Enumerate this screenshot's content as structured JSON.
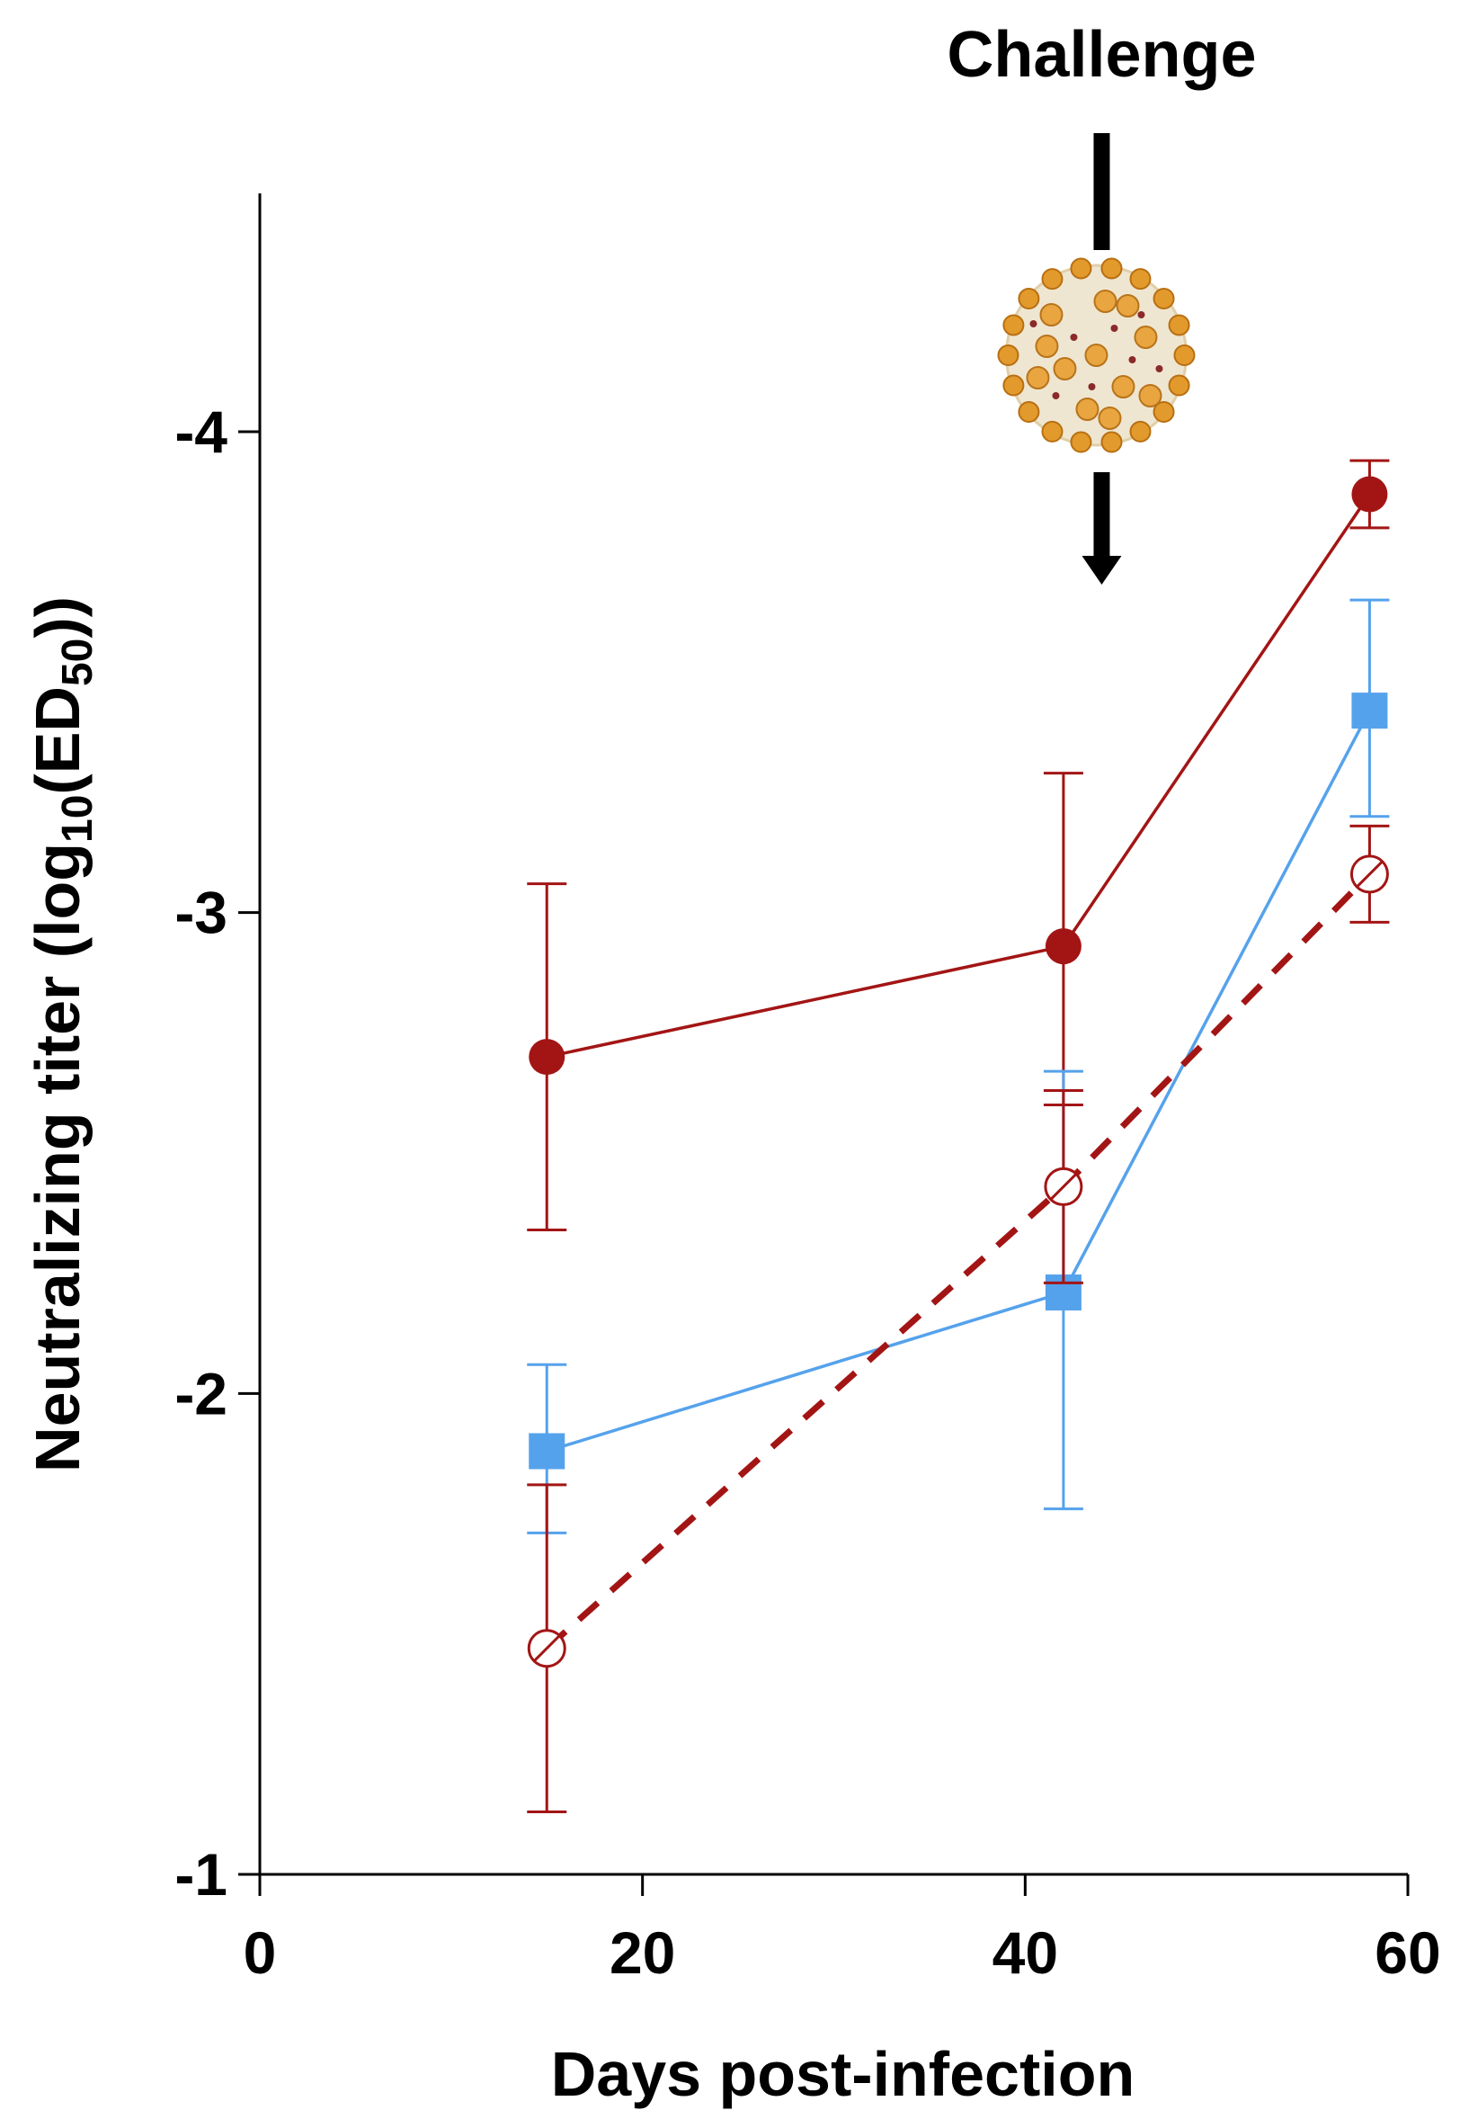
{
  "chart_data": {
    "type": "line",
    "xlabel": "Days post-infection",
    "ylabel_main": "Neutralizing titer (log",
    "ylabel_sub": "10",
    "ylabel_mid": "(ED",
    "ylabel_sub2": "50",
    "ylabel_end": "))",
    "xlim": [
      0,
      60
    ],
    "ylim": [
      -1,
      -4.5
    ],
    "x_ticks": [
      0,
      20,
      40,
      60
    ],
    "x_tick_labels": [
      "0",
      "20",
      "40",
      "60"
    ],
    "y_ticks": [
      -1,
      -2,
      -3,
      -4
    ],
    "y_tick_labels": [
      "-1",
      "-2",
      "-3",
      "-4"
    ],
    "y_axis_inverted": true,
    "grid": false,
    "annotation": {
      "text": "Challenge",
      "x": 44,
      "icon": "virus-particle-icon"
    },
    "series": [
      {
        "color": "#a31515",
        "marker": "filled-circle",
        "line_style": "solid",
        "x": [
          15,
          42,
          58
        ],
        "y": [
          -2.7,
          -2.93,
          -3.87
        ],
        "err_low": [
          -2.34,
          -2.6,
          -3.8
        ],
        "err_high": [
          -3.06,
          -3.29,
          -3.94
        ]
      },
      {
        "color": "#55a2ec",
        "marker": "filled-square",
        "line_style": "solid",
        "x": [
          15,
          42,
          58
        ],
        "y": [
          -1.88,
          -2.21,
          -3.42
        ],
        "err_low": [
          -1.71,
          -1.76,
          -3.2
        ],
        "err_high": [
          -2.06,
          -2.67,
          -3.65
        ]
      },
      {
        "color": "#a31515",
        "marker": "open-circle",
        "line_style": "dashed",
        "x": [
          15,
          42,
          58
        ],
        "y": [
          -1.47,
          -2.43,
          -3.08
        ],
        "err_low": [
          -1.13,
          -2.23,
          -2.98
        ],
        "err_high": [
          -1.81,
          -2.63,
          -3.18
        ]
      }
    ]
  }
}
